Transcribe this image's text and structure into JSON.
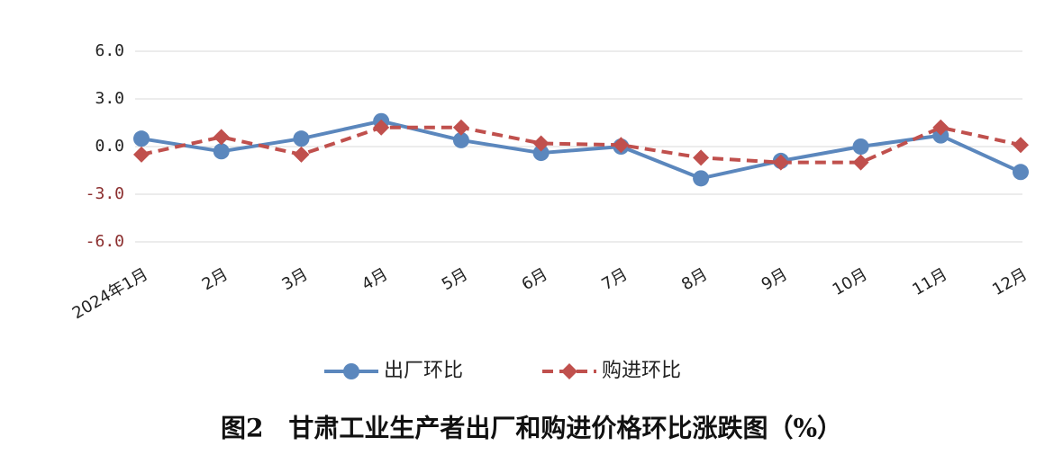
{
  "chart_data": {
    "type": "line",
    "title": "图2　甘肃工业生产者出厂和购进价格环比涨跌图（%）",
    "categories": [
      "2024年1月",
      "2月",
      "3月",
      "4月",
      "5月",
      "6月",
      "7月",
      "8月",
      "9月",
      "10月",
      "11月",
      "12月"
    ],
    "series": [
      {
        "name": "出厂环比",
        "color": "#5b87bd",
        "marker": "circle",
        "dash": false,
        "values": [
          0.5,
          -0.3,
          0.5,
          1.6,
          0.4,
          -0.4,
          0.0,
          -2.0,
          -0.9,
          0.0,
          0.7,
          -1.6
        ]
      },
      {
        "name": "购进环比",
        "color": "#c0504d",
        "marker": "diamond",
        "dash": true,
        "values": [
          -0.5,
          0.6,
          -0.5,
          1.2,
          1.2,
          0.2,
          0.1,
          -0.7,
          -1.0,
          -1.0,
          1.2,
          0.1
        ]
      }
    ],
    "ylim": [
      -6,
      6
    ],
    "yticks": [
      {
        "value": 6,
        "label": "6.0"
      },
      {
        "value": 3,
        "label": "3.0"
      },
      {
        "value": 0,
        "label": "0.0"
      },
      {
        "value": -3,
        "label": "-3.0"
      },
      {
        "value": -6,
        "label": "-6.0"
      }
    ],
    "grid": true
  }
}
